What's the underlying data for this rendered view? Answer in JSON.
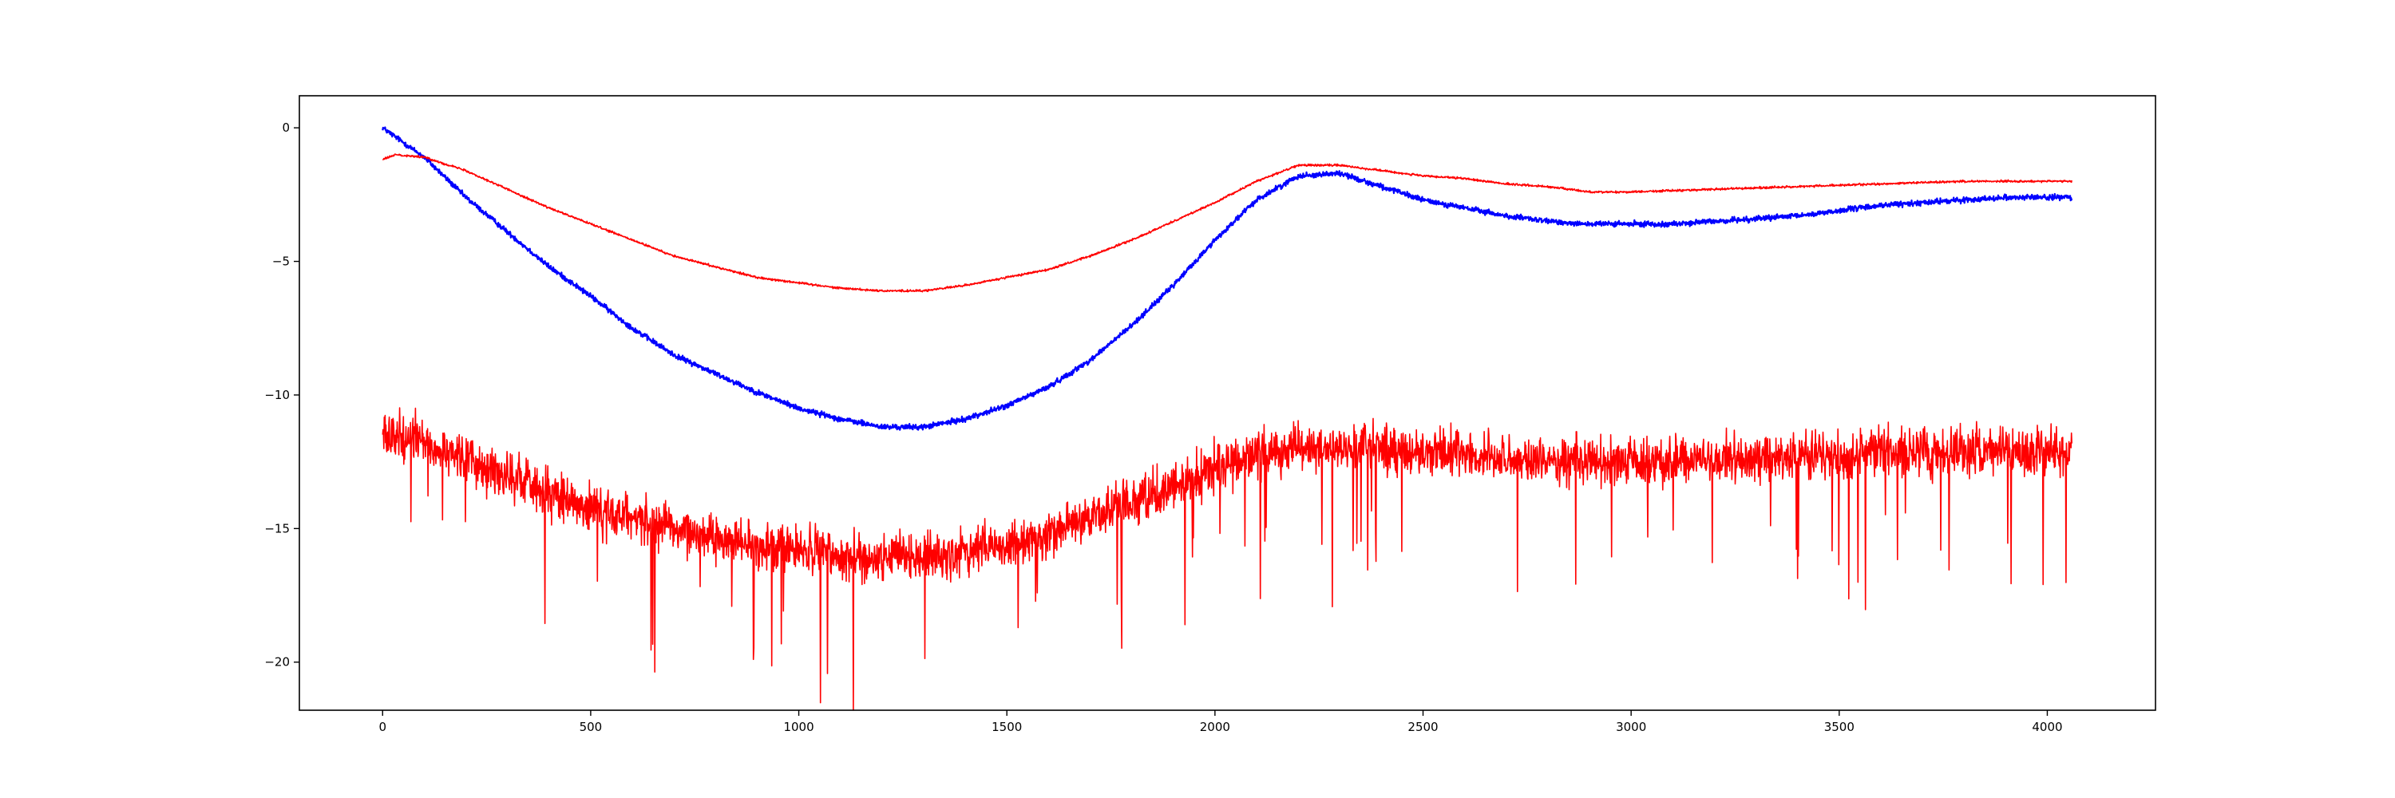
{
  "chart_data": {
    "type": "line",
    "title": "",
    "xlabel": "",
    "ylabel": "",
    "xlim": [
      -200,
      4260
    ],
    "ylim": [
      -21.8,
      1.2
    ],
    "grid": false,
    "legend": "none",
    "x_ticks": [
      0,
      500,
      1000,
      1500,
      2000,
      2500,
      3000,
      3500,
      4000
    ],
    "x_tick_labels": [
      "0",
      "500",
      "1000",
      "1500",
      "2000",
      "2500",
      "3000",
      "3500",
      "4000"
    ],
    "y_ticks": [
      0,
      -5,
      -10,
      -15,
      -20
    ],
    "y_tick_labels": [
      "0",
      "−5",
      "−10",
      "−15",
      "−20"
    ],
    "n_points": 4060,
    "series": [
      {
        "color": "#0000ff",
        "noise_amplitude": 0.15,
        "trend": [
          [
            0,
            0
          ],
          [
            100,
            -1.1
          ],
          [
            200,
            -2.6
          ],
          [
            300,
            -3.9
          ],
          [
            400,
            -5.2
          ],
          [
            500,
            -6.3
          ],
          [
            600,
            -7.5
          ],
          [
            700,
            -8.5
          ],
          [
            800,
            -9.2
          ],
          [
            900,
            -9.9
          ],
          [
            1000,
            -10.5
          ],
          [
            1100,
            -10.9
          ],
          [
            1200,
            -11.2
          ],
          [
            1300,
            -11.2
          ],
          [
            1400,
            -10.9
          ],
          [
            1500,
            -10.4
          ],
          [
            1600,
            -9.7
          ],
          [
            1700,
            -8.7
          ],
          [
            1800,
            -7.4
          ],
          [
            1900,
            -5.9
          ],
          [
            2000,
            -4.2
          ],
          [
            2100,
            -2.7
          ],
          [
            2200,
            -1.8
          ],
          [
            2300,
            -1.7
          ],
          [
            2400,
            -2.2
          ],
          [
            2500,
            -2.7
          ],
          [
            2600,
            -3.0
          ],
          [
            2700,
            -3.3
          ],
          [
            2800,
            -3.5
          ],
          [
            2900,
            -3.6
          ],
          [
            3000,
            -3.6
          ],
          [
            3100,
            -3.6
          ],
          [
            3200,
            -3.5
          ],
          [
            3300,
            -3.4
          ],
          [
            3400,
            -3.3
          ],
          [
            3500,
            -3.1
          ],
          [
            3600,
            -2.9
          ],
          [
            3700,
            -2.8
          ],
          [
            3800,
            -2.7
          ],
          [
            3900,
            -2.6
          ],
          [
            4060,
            -2.6
          ]
        ]
      },
      {
        "color": "#ff0000",
        "noise_amplitude": 0.06,
        "trend": [
          [
            0,
            -1.2
          ],
          [
            30,
            -1.0
          ],
          [
            100,
            -1.1
          ],
          [
            200,
            -1.6
          ],
          [
            300,
            -2.3
          ],
          [
            400,
            -3.0
          ],
          [
            500,
            -3.6
          ],
          [
            600,
            -4.2
          ],
          [
            700,
            -4.8
          ],
          [
            800,
            -5.2
          ],
          [
            900,
            -5.6
          ],
          [
            1000,
            -5.8
          ],
          [
            1100,
            -6.0
          ],
          [
            1200,
            -6.1
          ],
          [
            1300,
            -6.1
          ],
          [
            1400,
            -5.9
          ],
          [
            1500,
            -5.6
          ],
          [
            1600,
            -5.3
          ],
          [
            1700,
            -4.8
          ],
          [
            1800,
            -4.2
          ],
          [
            1900,
            -3.5
          ],
          [
            2000,
            -2.8
          ],
          [
            2100,
            -2.0
          ],
          [
            2200,
            -1.4
          ],
          [
            2300,
            -1.4
          ],
          [
            2400,
            -1.6
          ],
          [
            2500,
            -1.8
          ],
          [
            2600,
            -1.9
          ],
          [
            2700,
            -2.1
          ],
          [
            2800,
            -2.2
          ],
          [
            2900,
            -2.4
          ],
          [
            3000,
            -2.4
          ],
          [
            3200,
            -2.3
          ],
          [
            3400,
            -2.2
          ],
          [
            3600,
            -2.1
          ],
          [
            3800,
            -2.0
          ],
          [
            4060,
            -2.0
          ]
        ]
      },
      {
        "color": "#ff0000",
        "noise_amplitude": 1.3,
        "trend": [
          [
            0,
            -11.4
          ],
          [
            100,
            -11.8
          ],
          [
            200,
            -12.4
          ],
          [
            300,
            -13.0
          ],
          [
            400,
            -13.6
          ],
          [
            500,
            -14.2
          ],
          [
            600,
            -14.6
          ],
          [
            700,
            -15.0
          ],
          [
            800,
            -15.3
          ],
          [
            900,
            -15.6
          ],
          [
            1000,
            -15.8
          ],
          [
            1100,
            -16.0
          ],
          [
            1200,
            -16.1
          ],
          [
            1300,
            -16.1
          ],
          [
            1400,
            -15.9
          ],
          [
            1500,
            -15.6
          ],
          [
            1600,
            -15.2
          ],
          [
            1700,
            -14.6
          ],
          [
            1800,
            -14.0
          ],
          [
            1900,
            -13.4
          ],
          [
            2000,
            -12.8
          ],
          [
            2100,
            -12.3
          ],
          [
            2200,
            -12.0
          ],
          [
            2300,
            -11.9
          ],
          [
            2400,
            -12.0
          ],
          [
            2500,
            -12.1
          ],
          [
            2600,
            -12.2
          ],
          [
            2700,
            -12.4
          ],
          [
            2800,
            -12.5
          ],
          [
            2900,
            -12.5
          ],
          [
            3000,
            -12.5
          ],
          [
            3200,
            -12.4
          ],
          [
            3400,
            -12.3
          ],
          [
            3600,
            -12.2
          ],
          [
            3800,
            -12.1
          ],
          [
            4060,
            -12.1
          ]
        ]
      }
    ]
  }
}
